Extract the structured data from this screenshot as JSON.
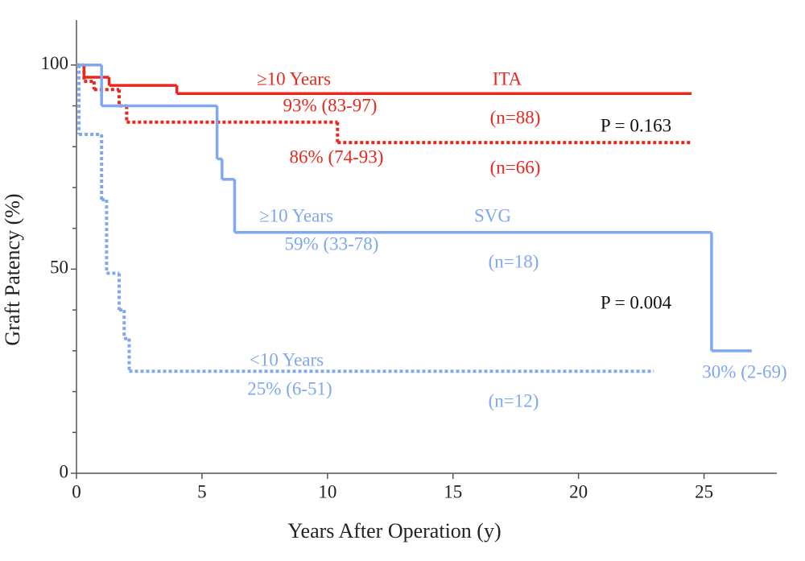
{
  "chart_data": {
    "type": "step",
    "xlabel": "Years After Operation (y)",
    "ylabel": "Graft Patency (%)",
    "xlim": [
      0,
      27.9
    ],
    "ylim": [
      0,
      111
    ],
    "xticks": [
      0,
      5,
      10,
      15,
      20,
      25
    ],
    "yticks": [
      0,
      50,
      100
    ],
    "yminor_ticks": [
      10,
      20,
      30,
      40,
      60,
      70,
      80,
      90
    ],
    "series": [
      {
        "color": "#e8281e",
        "dashed": false,
        "x": [
          0,
          0.3,
          1.3,
          4.0
        ],
        "values": [
          100,
          97,
          95,
          93
        ],
        "x_end": 24.5
      },
      {
        "color": "#e8281e",
        "dashed": true,
        "x": [
          0,
          0.3,
          0.7,
          1.7,
          2.0,
          10.4
        ],
        "values": [
          100,
          96,
          94,
          90,
          86,
          81
        ],
        "x_end": 24.5
      },
      {
        "color": "#7fa8ee",
        "dashed": false,
        "x": [
          0,
          1.0,
          5.6,
          5.8,
          6.3,
          25.3
        ],
        "values": [
          100,
          90,
          77,
          72,
          59,
          30
        ],
        "x_end": 26.9
      },
      {
        "color": "#7fa8ee",
        "dashed": true,
        "x": [
          0,
          0.1,
          1.0,
          1.2,
          1.7,
          1.9,
          2.1
        ],
        "values": [
          100,
          83,
          67,
          49,
          40,
          33,
          25
        ],
        "x_end": 23.0
      }
    ],
    "annotations": [
      {
        "text": "≥10 Years",
        "color": "#e8281e"
      },
      {
        "text": "ITA",
        "color": "#e8281e"
      },
      {
        "text": "93% (83-97)",
        "color": "#e8281e"
      },
      {
        "text": "(n=88)",
        "color": "#e8281e"
      },
      {
        "text": "P = 0.163",
        "color": "#111111"
      },
      {
        "text": "86% (74-93)",
        "color": "#e8281e"
      },
      {
        "text": "(n=66)",
        "color": "#e8281e"
      },
      {
        "text": "≥10 Years",
        "color": "#7fa8ee"
      },
      {
        "text": "SVG",
        "color": "#7fa8ee"
      },
      {
        "text": "59% (33-78)",
        "color": "#7fa8ee"
      },
      {
        "text": "(n=18)",
        "color": "#7fa8ee"
      },
      {
        "text": "P = 0.004",
        "color": "#111111"
      },
      {
        "text": "<10 Years",
        "color": "#7fa8ee"
      },
      {
        "text": "30% (2-69)",
        "color": "#7fa8ee"
      },
      {
        "text": "25% (6-51)",
        "color": "#7fa8ee"
      },
      {
        "text": "(n=12)",
        "color": "#7fa8ee"
      }
    ]
  }
}
